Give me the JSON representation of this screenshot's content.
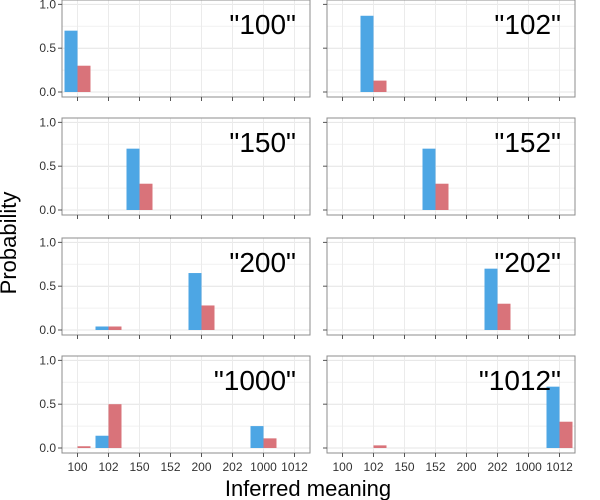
{
  "chart_data": {
    "type": "bar",
    "xlabel": "Inferred meaning",
    "ylabel": "Probability",
    "categories": [
      "100",
      "102",
      "150",
      "152",
      "200",
      "202",
      "1000",
      "1012"
    ],
    "y_ticks": [
      "0.0",
      "0.5",
      "1.0"
    ],
    "ylim": [
      0,
      1.05
    ],
    "grid": true,
    "legend": "none",
    "colors": [
      "#4da6e4",
      "#d9737a"
    ],
    "panels": [
      {
        "label": "\"100\"",
        "series": [
          {
            "values": [
              0.7,
              0,
              0,
              0,
              0,
              0,
              0,
              0
            ]
          },
          {
            "values": [
              0.3,
              0,
              0,
              0,
              0,
              0,
              0,
              0
            ]
          }
        ]
      },
      {
        "label": "\"102\"",
        "series": [
          {
            "values": [
              0,
              0.87,
              0,
              0,
              0,
              0,
              0,
              0
            ]
          },
          {
            "values": [
              0,
              0.13,
              0,
              0,
              0,
              0,
              0,
              0
            ]
          }
        ]
      },
      {
        "label": "\"150\"",
        "series": [
          {
            "values": [
              0,
              0,
              0.7,
              0,
              0,
              0,
              0,
              0
            ]
          },
          {
            "values": [
              0,
              0,
              0.3,
              0,
              0,
              0,
              0,
              0
            ]
          }
        ]
      },
      {
        "label": "\"152\"",
        "series": [
          {
            "values": [
              0,
              0,
              0,
              0.7,
              0,
              0,
              0,
              0
            ]
          },
          {
            "values": [
              0,
              0,
              0,
              0.3,
              0,
              0,
              0,
              0
            ]
          }
        ]
      },
      {
        "label": "\"200\"",
        "series": [
          {
            "values": [
              0,
              0.04,
              0,
              0,
              0.65,
              0,
              0,
              0
            ]
          },
          {
            "values": [
              0,
              0.04,
              0,
              0,
              0.28,
              0,
              0,
              0
            ]
          }
        ]
      },
      {
        "label": "\"202\"",
        "series": [
          {
            "values": [
              0,
              0,
              0,
              0,
              0,
              0.7,
              0,
              0
            ]
          },
          {
            "values": [
              0,
              0,
              0,
              0,
              0,
              0.3,
              0,
              0
            ]
          }
        ]
      },
      {
        "label": "\"1000\"",
        "series": [
          {
            "values": [
              0,
              0.14,
              0,
              0,
              0,
              0,
              0.25,
              0
            ]
          },
          {
            "values": [
              0.02,
              0.5,
              0,
              0,
              0,
              0,
              0.11,
              0
            ]
          }
        ]
      },
      {
        "label": "\"1012\"",
        "series": [
          {
            "values": [
              0,
              0,
              0,
              0,
              0,
              0,
              0,
              0.7
            ]
          },
          {
            "values": [
              0,
              0.03,
              0,
              0,
              0,
              0,
              0,
              0.3
            ]
          }
        ]
      }
    ]
  }
}
